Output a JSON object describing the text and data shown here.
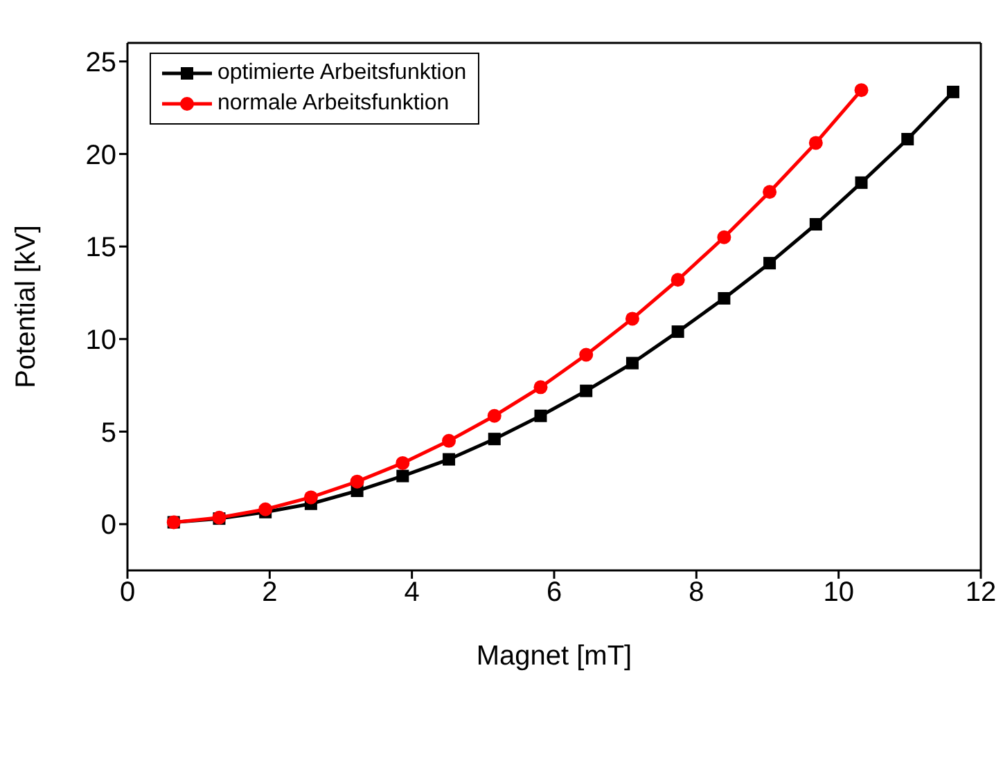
{
  "chart_data": {
    "type": "line",
    "xlabel": "Magnet [mT]",
    "ylabel": "Potential [kV]",
    "xlim": [
      0,
      12
    ],
    "xticks": [
      0,
      2,
      4,
      6,
      8,
      10,
      12
    ],
    "ylim": [
      -2.5,
      26
    ],
    "yticks": [
      0,
      5,
      10,
      15,
      20,
      25
    ],
    "grid": false,
    "legend": "top left",
    "series": [
      {
        "name": "optimierte Arbeitsfunktion",
        "color": "#000000",
        "marker": "square",
        "x": [
          0.65,
          1.29,
          1.94,
          2.58,
          3.23,
          3.87,
          4.52,
          5.16,
          5.81,
          6.45,
          7.1,
          7.74,
          8.39,
          9.03,
          9.68,
          10.32,
          10.97,
          11.61
        ],
        "values": [
          0.1,
          0.3,
          0.65,
          1.1,
          1.8,
          2.6,
          3.5,
          4.6,
          5.85,
          7.2,
          8.7,
          10.4,
          12.2,
          14.1,
          16.2,
          18.45,
          20.8,
          23.35
        ]
      },
      {
        "name": "normale Arbeitsfunktion",
        "color": "#ff0000",
        "marker": "circle",
        "x": [
          0.65,
          1.29,
          1.94,
          2.58,
          3.23,
          3.87,
          4.52,
          5.16,
          5.81,
          6.45,
          7.1,
          7.74,
          8.39,
          9.03,
          9.68,
          10.32
        ],
        "values": [
          0.1,
          0.35,
          0.8,
          1.45,
          2.3,
          3.3,
          4.5,
          5.85,
          7.4,
          9.15,
          11.1,
          13.2,
          15.5,
          17.95,
          20.6,
          23.45
        ]
      }
    ]
  }
}
